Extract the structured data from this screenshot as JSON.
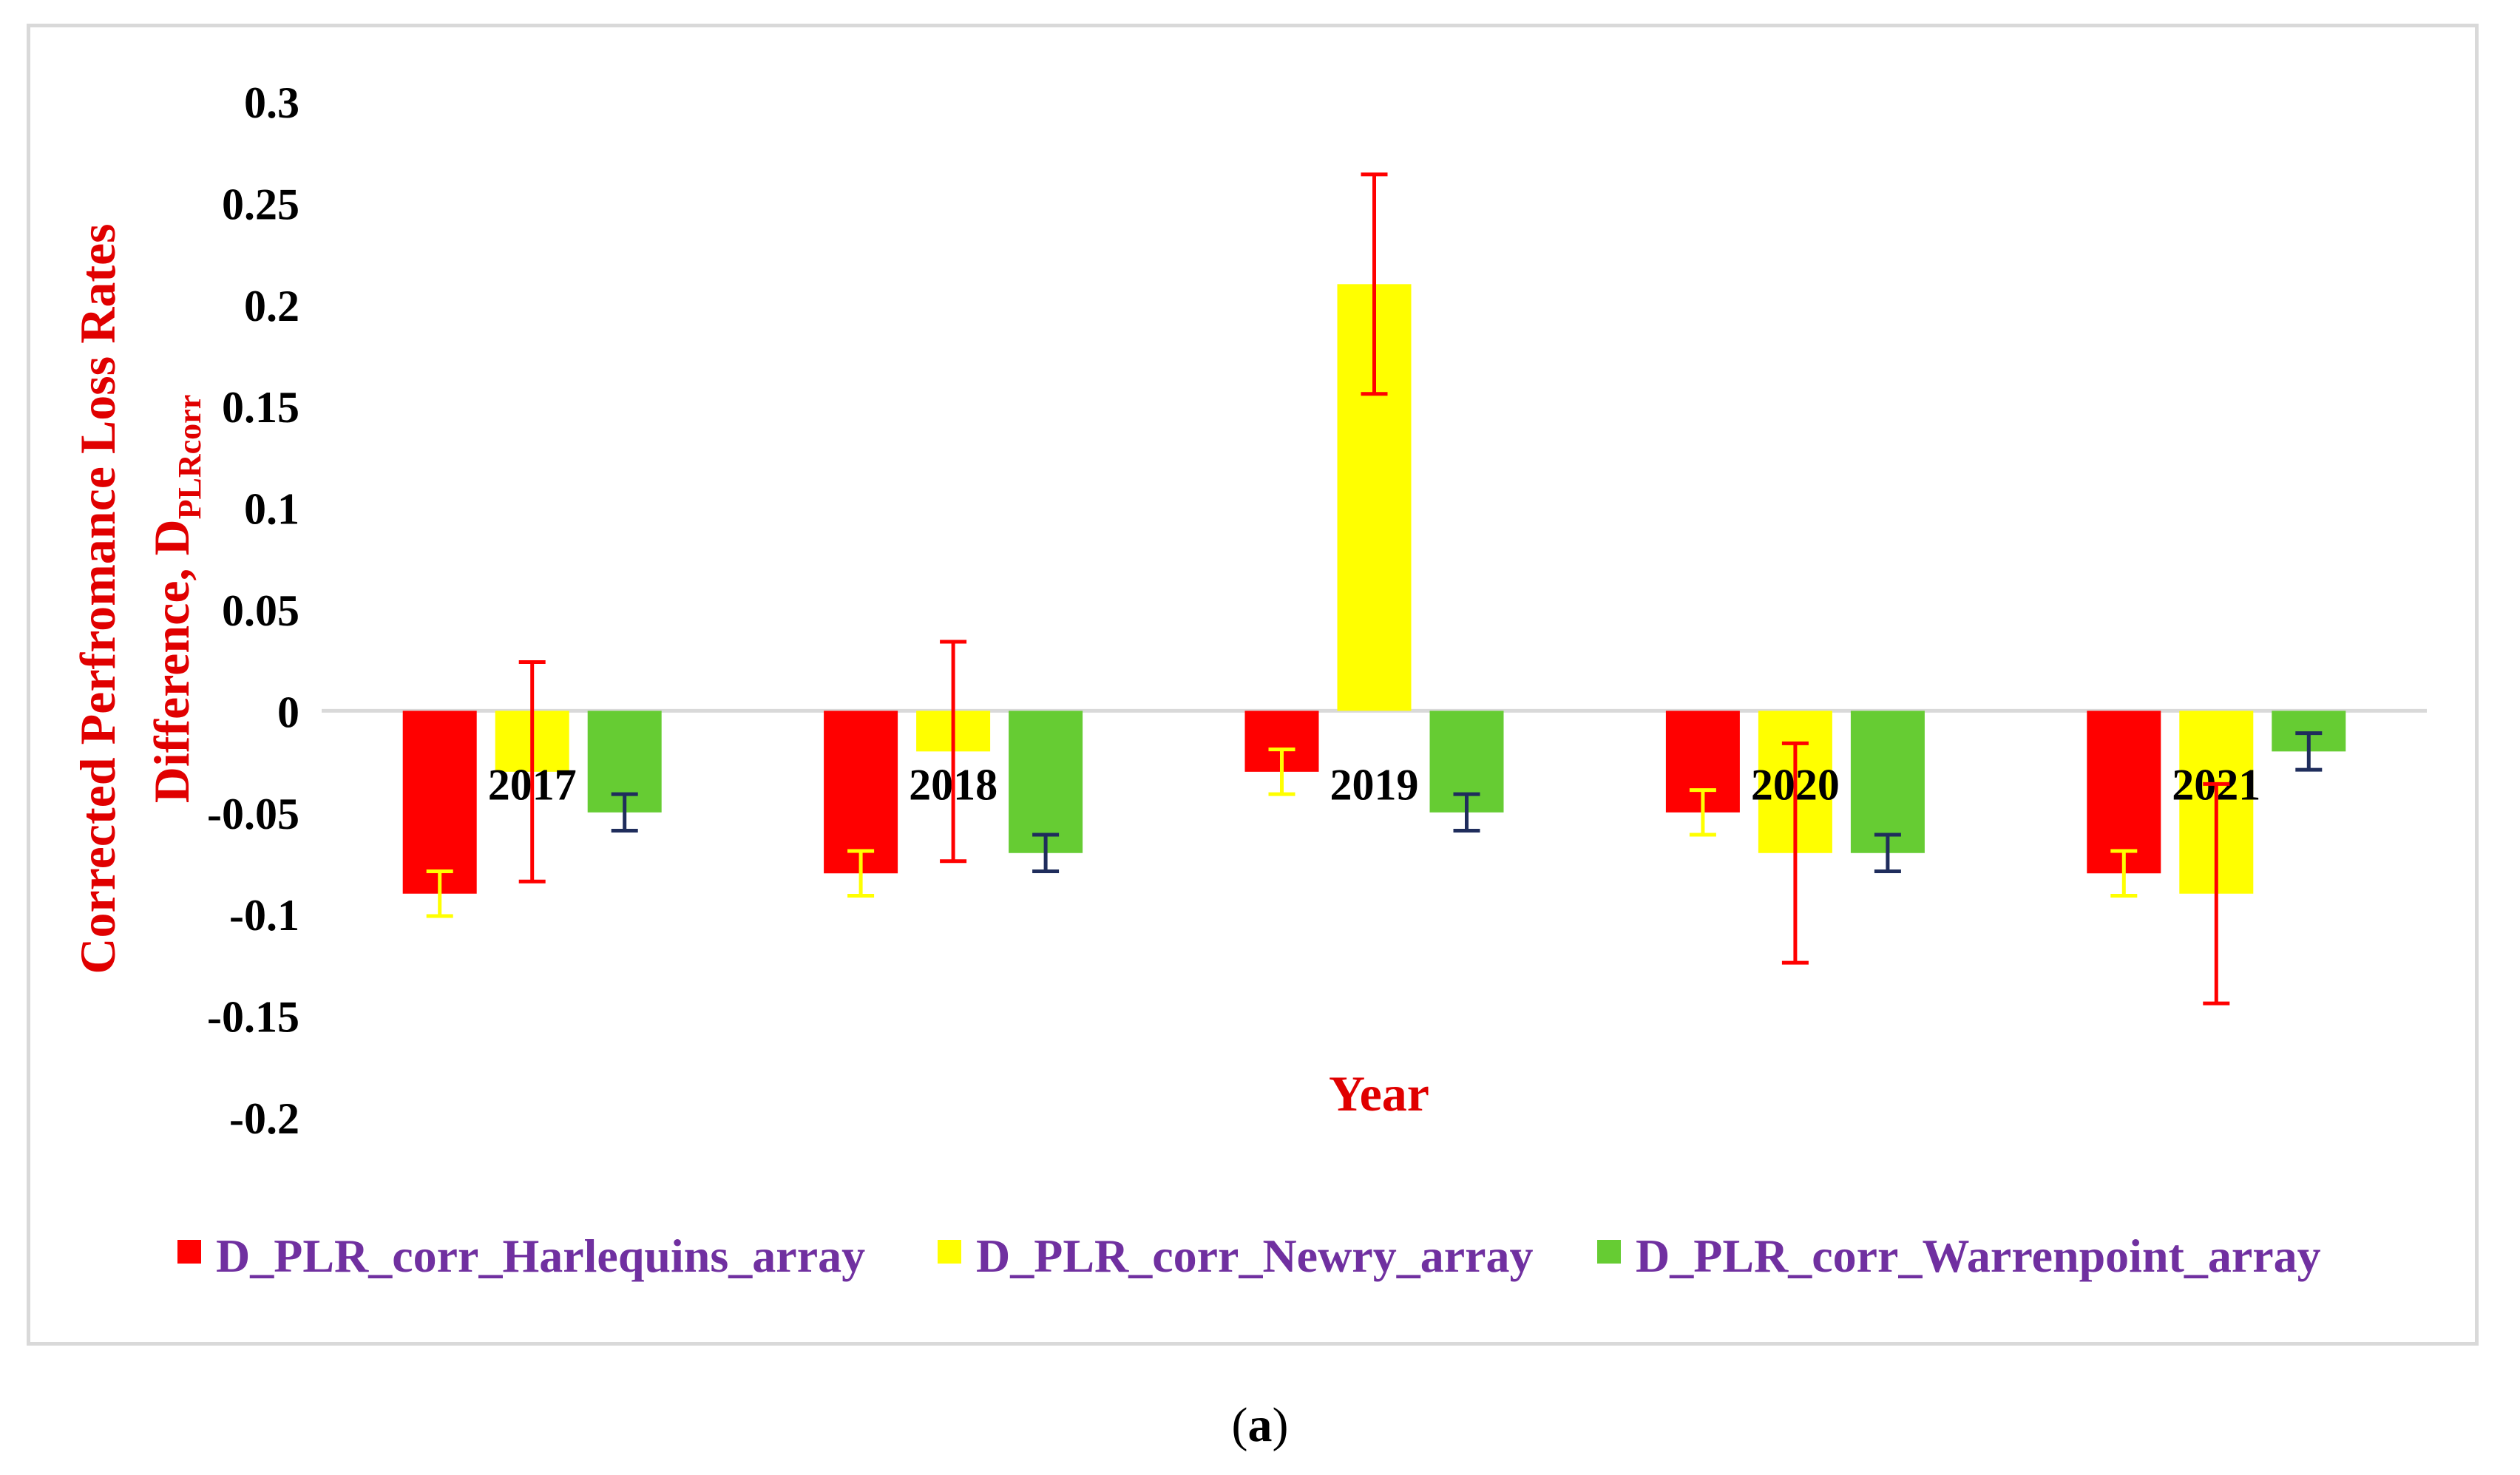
{
  "chart_data": {
    "type": "bar",
    "categories": [
      "2017",
      "2018",
      "2019",
      "2020",
      "2021"
    ],
    "series": [
      {
        "name": "D_PLR_corr_Harlequins_array",
        "color": "#ff0000",
        "error_color": "#ffff00",
        "values": [
          -0.09,
          -0.08,
          -0.03,
          -0.05,
          -0.08
        ],
        "errors": [
          0.011,
          0.011,
          0.011,
          0.011,
          0.011
        ]
      },
      {
        "name": "D_PLR_corr_Newry_array",
        "color": "#ffff00",
        "error_color": "#ff0000",
        "values": [
          -0.03,
          -0.02,
          0.21,
          -0.07,
          -0.09
        ],
        "errors": [
          0.054,
          0.054,
          0.054,
          0.054,
          0.054
        ]
      },
      {
        "name": "D_PLR_corr_Warrenpoint_array",
        "color": "#66cc33",
        "error_color": "#1f2d5c",
        "values": [
          -0.05,
          -0.07,
          -0.05,
          -0.07,
          -0.02
        ],
        "errors": [
          0.009,
          0.009,
          0.009,
          0.009,
          0.009
        ]
      }
    ],
    "yticks": [
      "0.3",
      "0.25",
      "0.2",
      "0.15",
      "0.1",
      "0.05",
      "0",
      "-0.05",
      "-0.1",
      "-0.15",
      "-0.2"
    ],
    "ylim": [
      -0.2,
      0.3
    ],
    "ylabel_line1": "Corrected Perfromance Loss Rates",
    "ylabel_line2": "Difference, D",
    "ylabel_sub": "PLRcorr",
    "xlabel": "Year",
    "legend_position": "bottom",
    "gridlines": false
  },
  "caption": {
    "open": "(",
    "letter": "a",
    "close": ")"
  },
  "colors": {
    "axis_title": "#e00000",
    "legend_text": "#7030a0",
    "axis_line": "#d9d9d9"
  }
}
